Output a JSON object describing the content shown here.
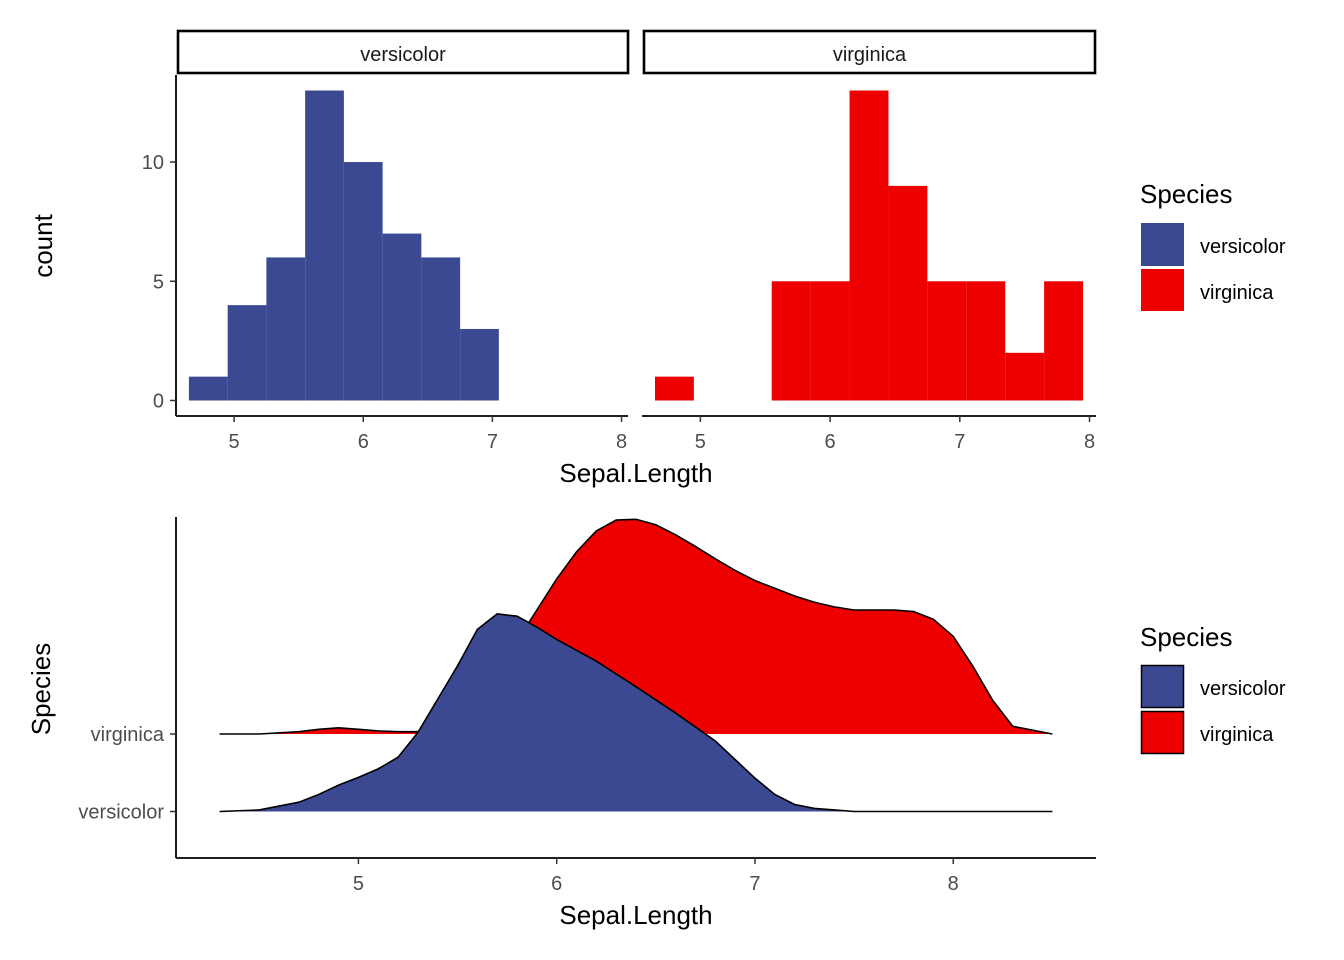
{
  "chart_data": [
    {
      "type": "bar",
      "subtype": "faceted-histogram",
      "facets": [
        {
          "label": "versicolor",
          "color": "#3B4992",
          "bins": [
            {
              "x0": 4.65,
              "x1": 4.95,
              "count": 1
            },
            {
              "x0": 4.95,
              "x1": 5.25,
              "count": 4
            },
            {
              "x0": 5.25,
              "x1": 5.55,
              "count": 6
            },
            {
              "x0": 5.55,
              "x1": 5.85,
              "count": 13
            },
            {
              "x0": 5.85,
              "x1": 6.15,
              "count": 10
            },
            {
              "x0": 6.15,
              "x1": 6.45,
              "count": 7
            },
            {
              "x0": 6.45,
              "x1": 6.75,
              "count": 6
            },
            {
              "x0": 6.75,
              "x1": 7.05,
              "count": 3
            }
          ]
        },
        {
          "label": "virginica",
          "color": "#EE0000",
          "bins": [
            {
              "x0": 4.65,
              "x1": 4.95,
              "count": 1
            },
            {
              "x0": 5.55,
              "x1": 5.85,
              "count": 5
            },
            {
              "x0": 5.85,
              "x1": 6.15,
              "count": 5
            },
            {
              "x0": 6.15,
              "x1": 6.45,
              "count": 13
            },
            {
              "x0": 6.45,
              "x1": 6.75,
              "count": 9
            },
            {
              "x0": 6.75,
              "x1": 7.05,
              "count": 5
            },
            {
              "x0": 7.05,
              "x1": 7.35,
              "count": 5
            },
            {
              "x0": 7.35,
              "x1": 7.65,
              "count": 2
            },
            {
              "x0": 7.65,
              "x1": 7.95,
              "count": 5
            }
          ]
        }
      ],
      "xlabel": "Sepal.Length",
      "ylabel": "count",
      "xlim": [
        4.55,
        8.05
      ],
      "ylim": [
        -0.65,
        13.65
      ],
      "xticks": [
        5,
        6,
        7,
        8
      ],
      "yticks": [
        0,
        5,
        10
      ],
      "grid": false,
      "legend": {
        "title": "Species",
        "placement": "right",
        "items": [
          "versicolor",
          "virginica"
        ]
      }
    },
    {
      "type": "area",
      "subtype": "ridgeline-density",
      "series": [
        {
          "name": "versicolor",
          "color": "#3B4992",
          "x": [
            4.3,
            4.5,
            4.7,
            4.8,
            4.9,
            5.0,
            5.1,
            5.2,
            5.3,
            5.4,
            5.5,
            5.6,
            5.7,
            5.8,
            5.9,
            6.0,
            6.2,
            6.4,
            6.6,
            6.8,
            7.0,
            7.1,
            7.2,
            7.3,
            7.4,
            7.5,
            7.8,
            8.1,
            8.5
          ],
          "y": [
            6.0,
            6.02,
            6.12,
            6.22,
            6.34,
            6.44,
            6.55,
            6.7,
            7.02,
            7.45,
            7.88,
            8.35,
            8.55,
            8.52,
            8.38,
            8.22,
            7.94,
            7.61,
            7.27,
            6.91,
            6.43,
            6.22,
            6.09,
            6.04,
            6.02,
            6.0,
            6.0,
            6.0,
            6.0
          ]
        },
        {
          "name": "virginica",
          "color": "#EE0000",
          "x": [
            4.3,
            4.5,
            4.7,
            4.8,
            4.9,
            5.0,
            5.1,
            5.2,
            5.3,
            5.4,
            5.5,
            5.6,
            5.7,
            5.8,
            5.9,
            6.0,
            6.1,
            6.2,
            6.3,
            6.4,
            6.5,
            6.6,
            6.7,
            6.8,
            6.9,
            7.0,
            7.1,
            7.2,
            7.3,
            7.4,
            7.5,
            7.6,
            7.7,
            7.8,
            7.9,
            8.0,
            8.1,
            8.2,
            8.3,
            8.5
          ],
          "y": [
            7.0,
            7.0,
            7.03,
            7.06,
            7.08,
            7.06,
            7.04,
            7.03,
            7.03,
            7.06,
            7.2,
            7.48,
            7.8,
            8.2,
            8.6,
            9.0,
            9.35,
            9.62,
            9.76,
            9.77,
            9.7,
            9.57,
            9.42,
            9.26,
            9.11,
            8.98,
            8.88,
            8.78,
            8.7,
            8.64,
            8.6,
            8.6,
            8.6,
            8.58,
            8.48,
            8.26,
            7.87,
            7.43,
            7.1,
            7.0
          ]
        }
      ],
      "categories": [
        "versicolor",
        "virginica"
      ],
      "xlabel": "Sepal.Length",
      "ylabel": "Species",
      "xlim": [
        4.08,
        8.72
      ],
      "ylim": [
        5.4,
        9.8
      ],
      "xticks": [
        5,
        6,
        7,
        8
      ],
      "grid": false,
      "legend": {
        "title": "Species",
        "placement": "right",
        "items": [
          "versicolor",
          "virginica"
        ]
      }
    }
  ]
}
